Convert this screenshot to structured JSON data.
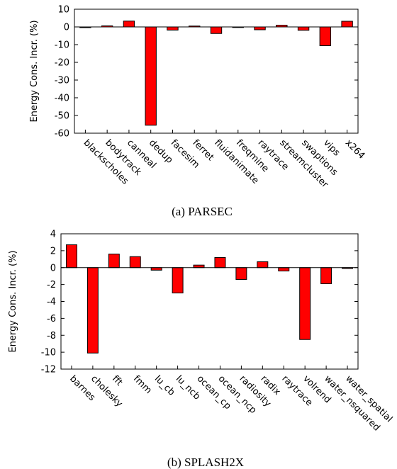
{
  "chart_data": [
    {
      "type": "bar",
      "caption": "(a) PARSEC",
      "ylabel": "Energy Cons. Incr. (%)",
      "xlabel": "",
      "ylim": [
        -60,
        10
      ],
      "yticks": [
        10,
        0,
        -10,
        -20,
        -30,
        -40,
        -50,
        -60
      ],
      "grid": false,
      "legend": "none",
      "bar_color": "#ff0000",
      "categories": [
        "blackscholes",
        "bodytrack",
        "canneal",
        "dedup",
        "facesim",
        "ferret",
        "fluidanimate",
        "freqmine",
        "raytrace",
        "streamcluster",
        "swaptions",
        "vips",
        "x264"
      ],
      "values": [
        -0.4,
        0.6,
        3.3,
        -55.5,
        -1.8,
        0.5,
        -3.7,
        -0.3,
        -1.6,
        1.0,
        -1.9,
        -10.6,
        3.2
      ]
    },
    {
      "type": "bar",
      "caption": "(b) SPLASH2X",
      "ylabel": "Energy Cons. Incr. (%)",
      "xlabel": "",
      "ylim": [
        -12,
        4
      ],
      "yticks": [
        4,
        2,
        0,
        -2,
        -4,
        -6,
        -8,
        -10,
        -12
      ],
      "grid": false,
      "legend": "none",
      "bar_color": "#ff0000",
      "categories": [
        "barnes",
        "cholesky",
        "fft",
        "fmm",
        "lu_cb",
        "lu_ncb",
        "ocean_cp",
        "ocean_ncp",
        "radiosity",
        "radix",
        "raytrace",
        "volrend",
        "water_nsquared",
        "water_spatial"
      ],
      "values": [
        2.7,
        -10.1,
        1.6,
        1.3,
        -0.3,
        -3.0,
        0.3,
        1.2,
        -1.4,
        0.7,
        -0.4,
        -8.5,
        -1.9,
        -0.1
      ]
    }
  ]
}
